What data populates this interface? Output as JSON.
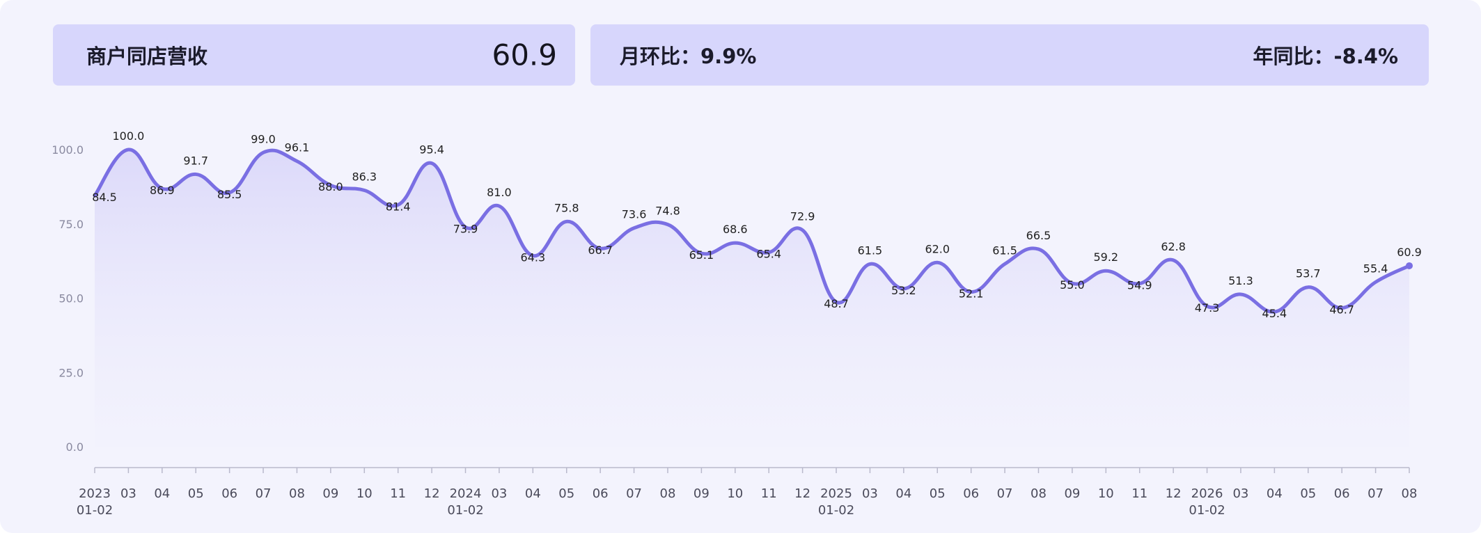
{
  "header": {
    "metric_title": "商户同店营收",
    "metric_value": "60.9",
    "mom_label": "月环比：9.9%",
    "yoy_label": "年同比：-8.4%"
  },
  "colors": {
    "line": "#7a6fe3",
    "card": "#d7d6fc",
    "panel": "#f3f3fd"
  },
  "chart_data": {
    "type": "line",
    "title": "",
    "xlabel": "",
    "ylabel": "",
    "ylim": [
      0,
      100
    ],
    "yticks": [
      "0.0",
      "25.0",
      "50.0",
      "75.0",
      "100.0"
    ],
    "grid": false,
    "categories": [
      "2023\n01-02",
      "03",
      "04",
      "05",
      "06",
      "07",
      "08",
      "09",
      "10",
      "11",
      "12",
      "2024\n01-02",
      "03",
      "04",
      "05",
      "06",
      "07",
      "08",
      "09",
      "10",
      "11",
      "12",
      "2025\n01-02",
      "03",
      "04",
      "05",
      "06",
      "07",
      "08",
      "09",
      "10",
      "11",
      "12",
      "2026\n01-02",
      "03",
      "04",
      "05",
      "06",
      "07",
      "08"
    ],
    "values": [
      84.5,
      100.0,
      86.9,
      91.7,
      85.5,
      99.0,
      96.1,
      88.0,
      86.3,
      81.4,
      95.4,
      73.9,
      81.0,
      64.3,
      75.8,
      66.7,
      73.6,
      74.8,
      65.1,
      68.6,
      65.4,
      72.9,
      48.7,
      61.5,
      53.2,
      62.0,
      52.1,
      61.5,
      66.5,
      55.0,
      59.2,
      54.9,
      62.8,
      47.3,
      51.3,
      45.4,
      53.7,
      46.7,
      55.4,
      60.9
    ],
    "data_labels": [
      "84.5",
      "100.0",
      "86.9",
      "91.7",
      "85.5",
      "99.0",
      "96.1",
      "88.0",
      "86.3",
      "81.4",
      "95.4",
      "73.9",
      "81.0",
      "64.3",
      "75.8",
      "66.7",
      "73.6",
      "74.8",
      "65.1",
      "68.6",
      "65.4",
      "72.9",
      "48.7",
      "61.5",
      "53.2",
      "62.0",
      "52.1",
      "61.5",
      "66.5",
      "55.0",
      "59.2",
      "54.9",
      "62.8",
      "47.3",
      "51.3",
      "45.4",
      "53.7",
      "46.7",
      "55.4",
      "60.9"
    ]
  }
}
